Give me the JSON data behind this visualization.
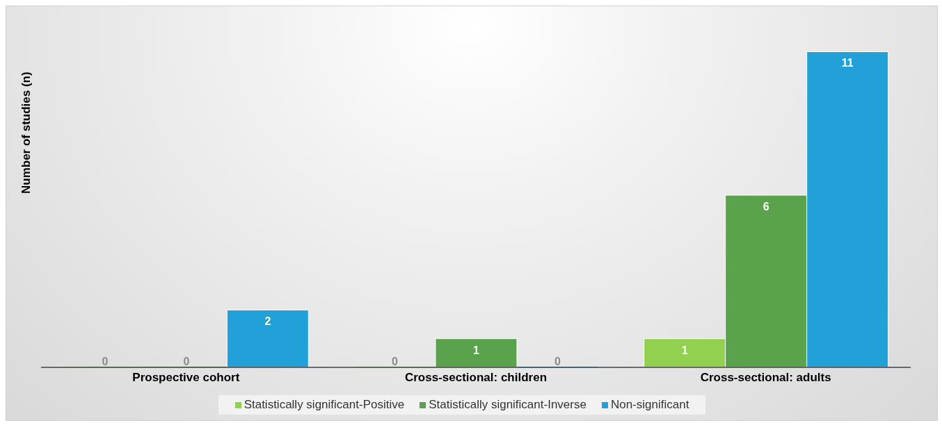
{
  "chart_data": {
    "type": "bar",
    "ylabel": "Number of studies (n)",
    "categories": [
      "Prospective cohort",
      "Cross-sectional: children",
      "Cross-sectional: adults"
    ],
    "series": [
      {
        "name": "Statistically significant-Positive",
        "color": "#92d050",
        "values": [
          0,
          0,
          1
        ]
      },
      {
        "name": "Statistically significant-Inverse",
        "color": "#5ba24c",
        "values": [
          0,
          1,
          6
        ]
      },
      {
        "name": "Non-significant",
        "color": "#22a0d8",
        "values": [
          2,
          0,
          11
        ]
      }
    ],
    "tick_labels": "x",
    "data_labels": true,
    "grid": false,
    "legend": "bottom"
  }
}
